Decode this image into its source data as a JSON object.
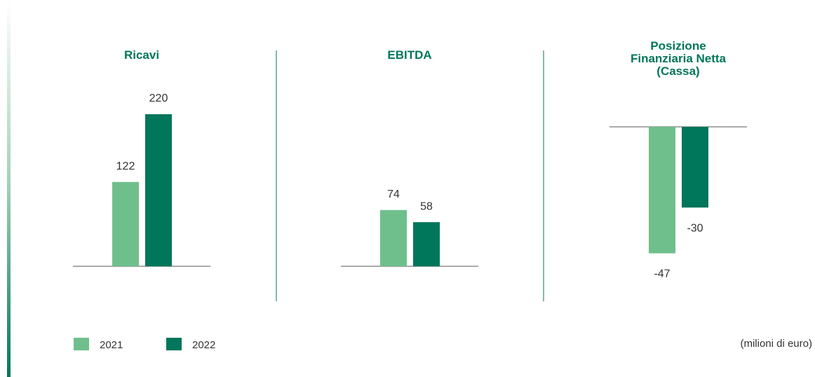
{
  "chart_data": [
    {
      "type": "bar",
      "title": "Ricavi",
      "values": [
        122,
        220
      ],
      "ylim": [
        0,
        220
      ]
    },
    {
      "type": "bar",
      "title": "EBITDA",
      "values": [
        74,
        58
      ],
      "ylim": [
        0,
        200
      ]
    },
    {
      "type": "bar",
      "title": "Posizione Finanziaria Netta (Cassa)",
      "values": [
        -47,
        -30
      ],
      "ylim": [
        -50,
        0
      ]
    }
  ],
  "legend": [
    {
      "name": "2021",
      "color": "#6fbf8c"
    },
    {
      "name": "2022",
      "color": "#00765a"
    }
  ],
  "note": "(milioni di euro)"
}
